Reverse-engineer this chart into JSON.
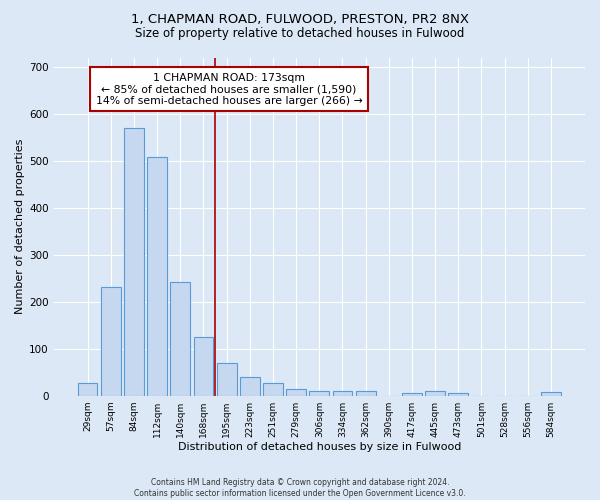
{
  "title1": "1, CHAPMAN ROAD, FULWOOD, PRESTON, PR2 8NX",
  "title2": "Size of property relative to detached houses in Fulwood",
  "xlabel": "Distribution of detached houses by size in Fulwood",
  "ylabel": "Number of detached properties",
  "bar_labels": [
    "29sqm",
    "57sqm",
    "84sqm",
    "112sqm",
    "140sqm",
    "168sqm",
    "195sqm",
    "223sqm",
    "251sqm",
    "279sqm",
    "306sqm",
    "334sqm",
    "362sqm",
    "390sqm",
    "417sqm",
    "445sqm",
    "473sqm",
    "501sqm",
    "528sqm",
    "556sqm",
    "584sqm"
  ],
  "bar_heights": [
    28,
    232,
    570,
    508,
    242,
    125,
    70,
    40,
    27,
    14,
    10,
    10,
    10,
    0,
    5,
    10,
    5,
    0,
    0,
    0,
    7
  ],
  "bar_color": "#c5d8f0",
  "bar_edge_color": "#5b9bd5",
  "vline_x": 5.5,
  "vline_color": "#aa0000",
  "annotation_line1": "1 CHAPMAN ROAD: 173sqm",
  "annotation_line2": "← 85% of detached houses are smaller (1,590)",
  "annotation_line3": "14% of semi-detached houses are larger (266) →",
  "annotation_edge_color": "#aa0000",
  "ylim": [
    0,
    720
  ],
  "yticks": [
    0,
    100,
    200,
    300,
    400,
    500,
    600,
    700
  ],
  "plot_bg_color": "#dce8f5",
  "fig_bg_color": "#dce8f5",
  "title1_fontsize": 9.5,
  "title2_fontsize": 8.5,
  "footer_line1": "Contains HM Land Registry data © Crown copyright and database right 2024.",
  "footer_line2": "Contains public sector information licensed under the Open Government Licence v3.0.",
  "grid_color": "#ffffff",
  "bar_width": 0.85
}
